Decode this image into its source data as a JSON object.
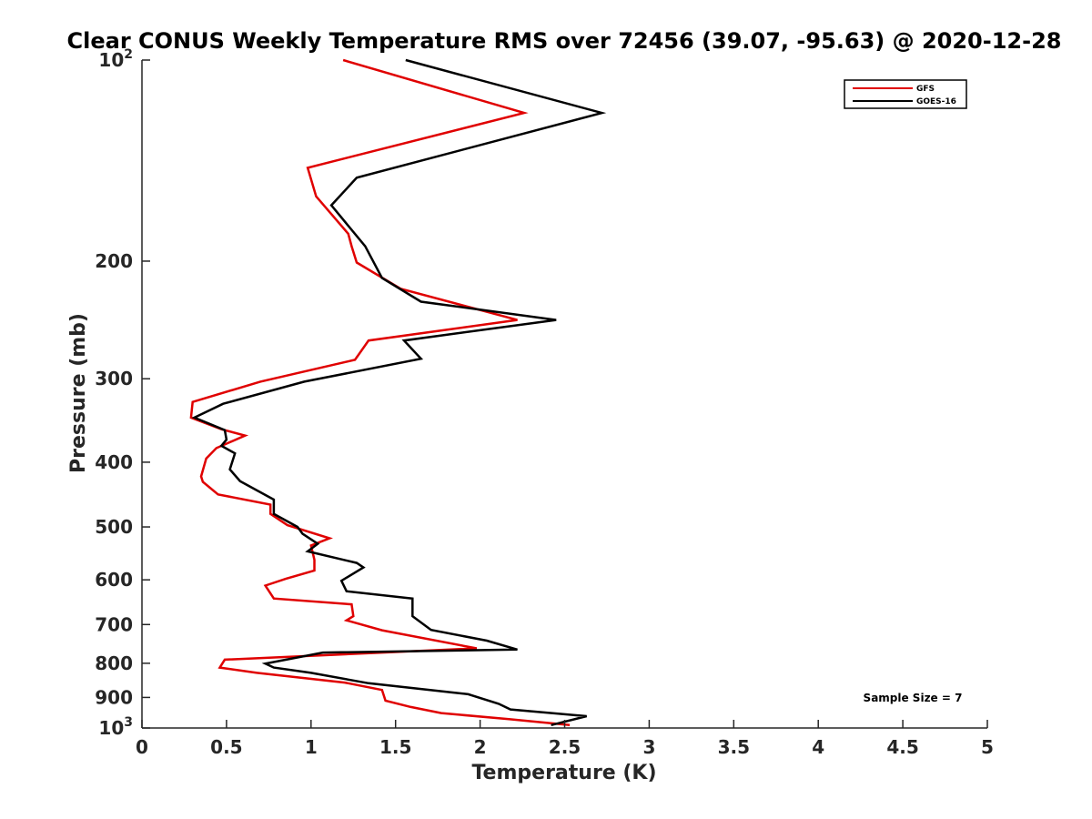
{
  "chart_data": {
    "type": "line",
    "title": "Clear CONUS Weekly Temperature RMS over 72456 (39.07, -95.63) @ 2020-12-28",
    "xlabel": "Temperature (K)",
    "ylabel": "Pressure (mb)",
    "xlim": [
      0,
      5
    ],
    "ylim": [
      100,
      1000
    ],
    "yscale": "log",
    "y_reversed": true,
    "xticks": [
      0,
      0.5,
      1,
      1.5,
      2,
      2.5,
      3,
      3.5,
      4,
      4.5,
      5
    ],
    "xtick_labels": [
      "0",
      "0.5",
      "1",
      "1.5",
      "2",
      "2.5",
      "3",
      "3.5",
      "4",
      "4.5",
      "5"
    ],
    "yticks": [
      100,
      200,
      300,
      400,
      500,
      600,
      700,
      800,
      900,
      1000
    ],
    "ytick_labels": [
      {
        "base": "10",
        "exp": "2"
      },
      {
        "base": "200",
        "exp": ""
      },
      {
        "base": "300",
        "exp": ""
      },
      {
        "base": "400",
        "exp": ""
      },
      {
        "base": "500",
        "exp": ""
      },
      {
        "base": "600",
        "exp": ""
      },
      {
        "base": "700",
        "exp": ""
      },
      {
        "base": "800",
        "exp": ""
      },
      {
        "base": "900",
        "exp": ""
      },
      {
        "base": "10",
        "exp": "3"
      }
    ],
    "legend_position": "top-right",
    "annotation": "Sample Size = 7",
    "series": [
      {
        "name": "GFS",
        "color": "#e00000",
        "points": [
          [
            1.19,
            100
          ],
          [
            2.26,
            120
          ],
          [
            0.98,
            145
          ],
          [
            1.03,
            160
          ],
          [
            1.22,
            182
          ],
          [
            1.24,
            190
          ],
          [
            1.27,
            201
          ],
          [
            1.53,
            220
          ],
          [
            2.22,
            245
          ],
          [
            1.34,
            263
          ],
          [
            1.26,
            281
          ],
          [
            0.7,
            303
          ],
          [
            0.3,
            325
          ],
          [
            0.29,
            343
          ],
          [
            0.47,
            357
          ],
          [
            0.61,
            365
          ],
          [
            0.44,
            381
          ],
          [
            0.38,
            395
          ],
          [
            0.35,
            420
          ],
          [
            0.36,
            428
          ],
          [
            0.45,
            447
          ],
          [
            0.76,
            463
          ],
          [
            0.76,
            478
          ],
          [
            0.86,
            497
          ],
          [
            1.11,
            520
          ],
          [
            1.0,
            533
          ],
          [
            1.02,
            560
          ],
          [
            1.02,
            581
          ],
          [
            0.85,
            598
          ],
          [
            0.73,
            612
          ],
          [
            0.78,
            640
          ],
          [
            1.24,
            653
          ],
          [
            1.25,
            680
          ],
          [
            1.21,
            690
          ],
          [
            1.42,
            714
          ],
          [
            1.98,
            760
          ],
          [
            0.49,
            790
          ],
          [
            0.46,
            812
          ],
          [
            0.68,
            827
          ],
          [
            1.2,
            855
          ],
          [
            1.42,
            877
          ],
          [
            1.44,
            910
          ],
          [
            1.59,
            930
          ],
          [
            1.77,
            950
          ],
          [
            2.17,
            970
          ],
          [
            2.53,
            990
          ]
        ]
      },
      {
        "name": "GOES-16",
        "color": "#000000",
        "points": [
          [
            1.56,
            100
          ],
          [
            2.72,
            120
          ],
          [
            1.27,
            150
          ],
          [
            1.12,
            165
          ],
          [
            1.32,
            190
          ],
          [
            1.42,
            212
          ],
          [
            1.65,
            230
          ],
          [
            2.45,
            245
          ],
          [
            1.55,
            263
          ],
          [
            1.65,
            280
          ],
          [
            0.96,
            303
          ],
          [
            0.48,
            327
          ],
          [
            0.31,
            343
          ],
          [
            0.49,
            358
          ],
          [
            0.5,
            370
          ],
          [
            0.47,
            378
          ],
          [
            0.55,
            388
          ],
          [
            0.52,
            410
          ],
          [
            0.58,
            427
          ],
          [
            0.78,
            455
          ],
          [
            0.78,
            478
          ],
          [
            0.92,
            500
          ],
          [
            0.95,
            512
          ],
          [
            1.04,
            530
          ],
          [
            0.98,
            544
          ],
          [
            1.27,
            566
          ],
          [
            1.31,
            575
          ],
          [
            1.18,
            602
          ],
          [
            1.21,
            624
          ],
          [
            1.6,
            640
          ],
          [
            1.6,
            680
          ],
          [
            1.71,
            713
          ],
          [
            2.04,
            740
          ],
          [
            2.22,
            763
          ],
          [
            1.07,
            771
          ],
          [
            0.73,
            801
          ],
          [
            0.78,
            812
          ],
          [
            1.0,
            827
          ],
          [
            1.34,
            857
          ],
          [
            1.93,
            890
          ],
          [
            2.11,
            920
          ],
          [
            2.18,
            938
          ],
          [
            2.63,
            960
          ],
          [
            2.42,
            990
          ]
        ]
      }
    ]
  }
}
